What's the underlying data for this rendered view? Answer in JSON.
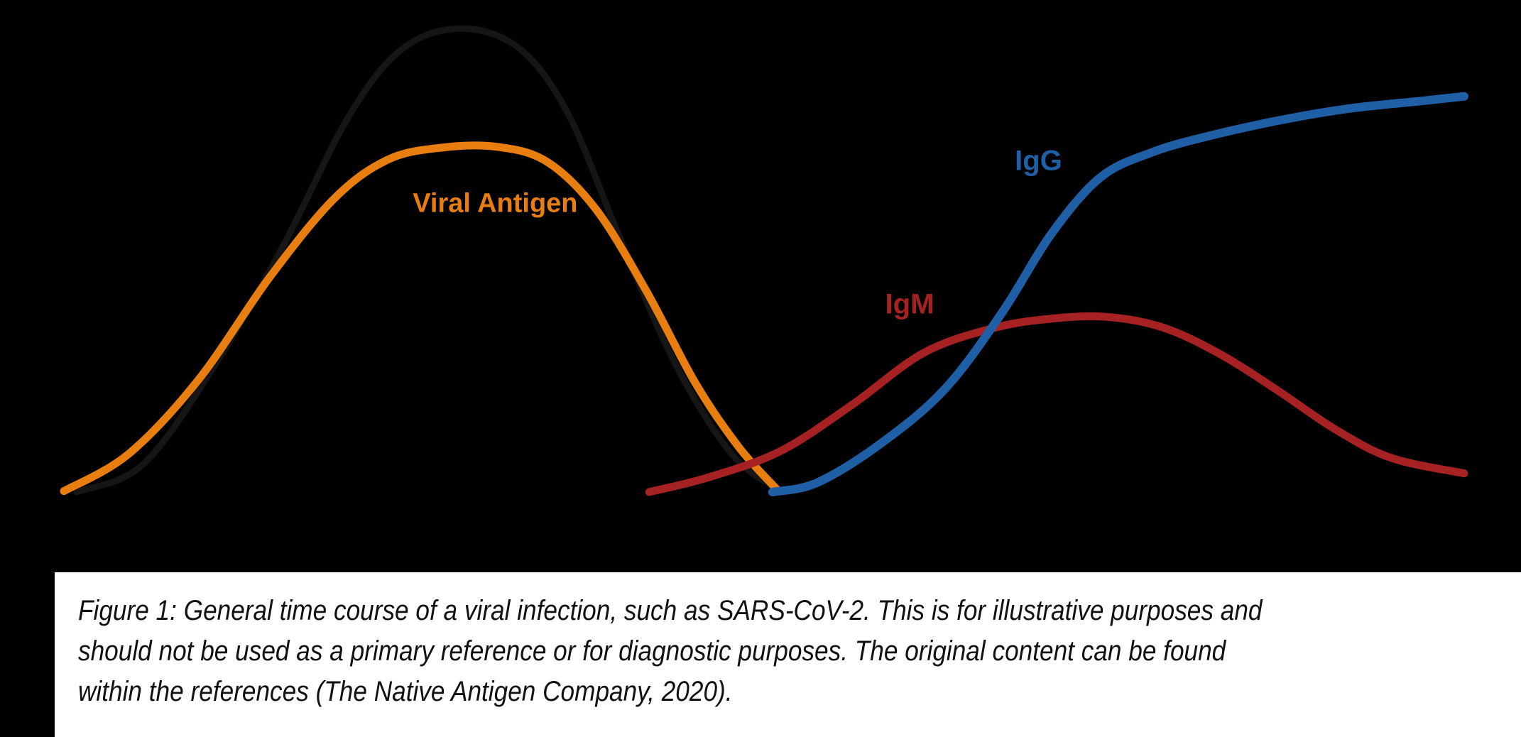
{
  "figure": {
    "background_color": "#000000",
    "caption": {
      "box_color": "#ffffff",
      "text_color": "#111111",
      "lines": [
        "Figure 1: General time course of a viral infection, such as SARS-CoV-2. This is for illustrative purposes and",
        "should not be used as a primary reference or for diagnostic purposes. The original content can be found",
        "within the references (The Native Antigen Company, 2020)."
      ]
    }
  },
  "chart_data": {
    "type": "line",
    "title": "",
    "xlabel": "",
    "ylabel": "",
    "x_units": "relative time since infection (0-100, illustrative, no axis shown)",
    "y_units": "relative level (0-100, illustrative, no axis shown)",
    "xlim": [
      0,
      100
    ],
    "ylim": [
      0,
      100
    ],
    "grid": false,
    "axes_visible": false,
    "legend_position": "inline-labels",
    "series": [
      {
        "id": "infection",
        "name": "unlabeled dark curve (infection course, nearly invisible on black background)",
        "label": null,
        "color": "#161616",
        "stroke_px": 9,
        "points": [
          [
            0.9,
            0
          ],
          [
            5.6,
            5.8
          ],
          [
            10.6,
            26.3
          ],
          [
            15.7,
            52.9
          ],
          [
            20.3,
            80.2
          ],
          [
            24.1,
            94.7
          ],
          [
            28.3,
            99.2
          ],
          [
            32.5,
            95.0
          ],
          [
            36.0,
            81.0
          ],
          [
            39.6,
            55.2
          ],
          [
            43.6,
            27.8
          ],
          [
            47.7,
            8.1
          ],
          [
            51.2,
            0.2
          ]
        ]
      },
      {
        "id": "viral-antigen",
        "name": "Viral Antigen",
        "label": "Viral Antigen",
        "label_xy": [
          30.8,
          61.7
        ],
        "color": "#E87E10",
        "stroke_px": 11,
        "points": [
          [
            0,
            0.2
          ],
          [
            4.6,
            8.1
          ],
          [
            9.6,
            24.0
          ],
          [
            14.7,
            46.0
          ],
          [
            19.3,
            62.8
          ],
          [
            23.1,
            71.1
          ],
          [
            26.9,
            73.7
          ],
          [
            30.9,
            73.9
          ],
          [
            34.5,
            70.7
          ],
          [
            38.0,
            60.5
          ],
          [
            41.6,
            43.0
          ],
          [
            45.1,
            23.3
          ],
          [
            48.2,
            9.6
          ],
          [
            51.0,
            0.3
          ]
        ]
      },
      {
        "id": "igm",
        "name": "IgM",
        "label": "IgM",
        "label_xy": [
          60.4,
          40.1
        ],
        "color": "#A62222",
        "stroke_px": 11,
        "points": [
          [
            41.8,
            0
          ],
          [
            46.1,
            3.2
          ],
          [
            51.2,
            8.8
          ],
          [
            56.3,
            18.7
          ],
          [
            61.4,
            29.8
          ],
          [
            66.4,
            35.1
          ],
          [
            70.5,
            37.1
          ],
          [
            74.5,
            37.5
          ],
          [
            78.6,
            35.1
          ],
          [
            82.7,
            29.3
          ],
          [
            86.7,
            21.7
          ],
          [
            90.8,
            13.4
          ],
          [
            94.8,
            7.3
          ],
          [
            100,
            4.0
          ]
        ]
      },
      {
        "id": "igg",
        "name": "IgG",
        "label": "IgG",
        "label_xy": [
          69.6,
          70.8
        ],
        "color": "#1F5FA6",
        "stroke_px": 12,
        "points": [
          [
            50.6,
            0
          ],
          [
            53.8,
            2.0
          ],
          [
            58.3,
            10.3
          ],
          [
            62.9,
            22.0
          ],
          [
            67.0,
            38.4
          ],
          [
            70.5,
            55.2
          ],
          [
            74.0,
            67.3
          ],
          [
            77.6,
            72.6
          ],
          [
            81.6,
            76.1
          ],
          [
            86.7,
            79.5
          ],
          [
            91.8,
            82.1
          ],
          [
            96.9,
            83.7
          ],
          [
            100,
            84.7
          ]
        ]
      }
    ]
  }
}
